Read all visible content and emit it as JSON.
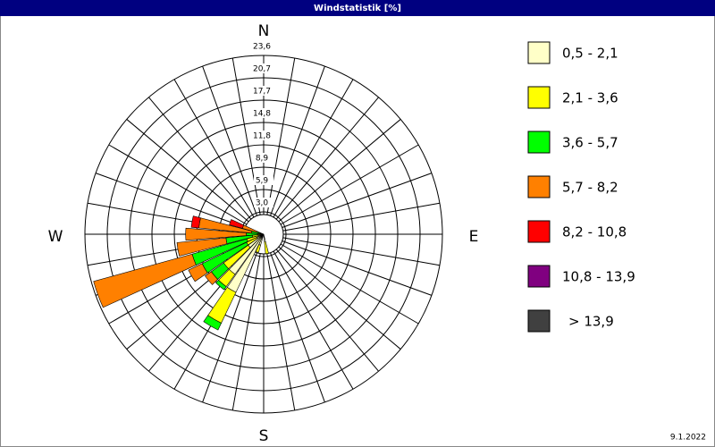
{
  "chart_data": {
    "type": "windrose",
    "title": "Windstatistik [%]",
    "direction_labels": [
      "N",
      "E",
      "S",
      "W"
    ],
    "directions": [
      170,
      200,
      210,
      220,
      230,
      240,
      250,
      260,
      270,
      280,
      290
    ],
    "series": [
      {
        "name": "0,5 - 2,1",
        "color": "#ffffc8",
        "values": [
          1.0,
          1.5,
          8.5,
          6.5,
          2.5,
          1.0,
          0.8,
          0.5,
          0.3,
          0.2,
          0.1
        ]
      },
      {
        "name": "2,1 - 3,6",
        "color": "#ffff00",
        "values": [
          1.6,
          1.0,
          4.5,
          2.0,
          4.0,
          1.5,
          1.5,
          1.0,
          0.5,
          0.4,
          0.3
        ]
      },
      {
        "name": "3,6 - 5,7",
        "color": "#00ff00",
        "values": [
          0,
          0,
          1.0,
          0.5,
          2.0,
          6.5,
          7.5,
          3.5,
          1.5,
          1.0,
          0.5
        ]
      },
      {
        "name": "5,7 - 8,2",
        "color": "#ff8000",
        "values": [
          0,
          0,
          0,
          0,
          1.0,
          2.0,
          13.5,
          6.5,
          8.0,
          7.0,
          2.0
        ]
      },
      {
        "name": "8,2 - 10,8",
        "color": "#ff0000",
        "values": [
          0,
          0,
          0,
          0,
          0,
          0,
          0,
          0,
          0,
          1.0,
          1.8
        ]
      },
      {
        "name": "10,8 - 13,9",
        "color": "#800080",
        "values": [
          0,
          0,
          0,
          0,
          0,
          0,
          0,
          0,
          0,
          0,
          0
        ]
      },
      {
        "name": "> 13,9",
        "color": "#404040",
        "values": [
          0,
          0,
          0,
          0,
          0,
          0,
          0,
          0,
          0,
          0,
          0
        ]
      }
    ],
    "rlim": [
      0,
      23.6
    ],
    "rticks": [
      {
        "value": 2.95,
        "label": "3,0"
      },
      {
        "value": 5.9,
        "label": "5,9"
      },
      {
        "value": 8.85,
        "label": "8,9"
      },
      {
        "value": 11.8,
        "label": "11,8"
      },
      {
        "value": 14.75,
        "label": "14,8"
      },
      {
        "value": 17.7,
        "label": "17,7"
      },
      {
        "value": 20.65,
        "label": "20,7"
      },
      {
        "value": 23.6,
        "label": "23,6"
      }
    ],
    "date": "9.1.2022"
  }
}
